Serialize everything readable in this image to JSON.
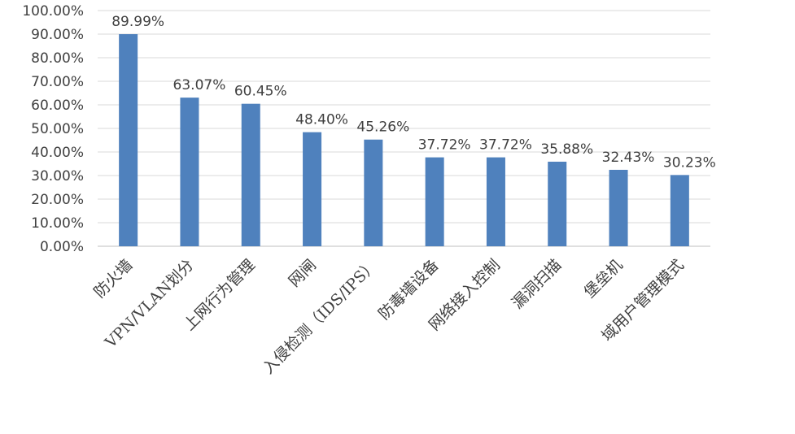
{
  "chart_data": {
    "type": "bar",
    "categories": [
      "防火墙",
      "VPN/VLAN划分",
      "上网行为管理",
      "网闸",
      "入侵检测（IDS/IPS）",
      "防毒墙设备",
      "网络接入控制",
      "漏洞扫描",
      "堡垒机",
      "域用户管理模式"
    ],
    "values": [
      89.99,
      63.07,
      60.45,
      48.4,
      45.26,
      37.72,
      37.72,
      35.88,
      32.43,
      30.23
    ],
    "value_labels": [
      "89.99%",
      "63.07%",
      "60.45%",
      "48.40%",
      "45.26%",
      "37.72%",
      "37.72%",
      "35.88%",
      "32.43%",
      "30.23%"
    ],
    "yticks": [
      "0.00%",
      "10.00%",
      "20.00%",
      "30.00%",
      "40.00%",
      "50.00%",
      "60.00%",
      "70.00%",
      "80.00%",
      "90.00%",
      "100.00%"
    ],
    "ylim": [
      0,
      100
    ],
    "grid": true,
    "bar_color": "#4f81bd",
    "title": "",
    "xlabel": "",
    "ylabel": ""
  }
}
